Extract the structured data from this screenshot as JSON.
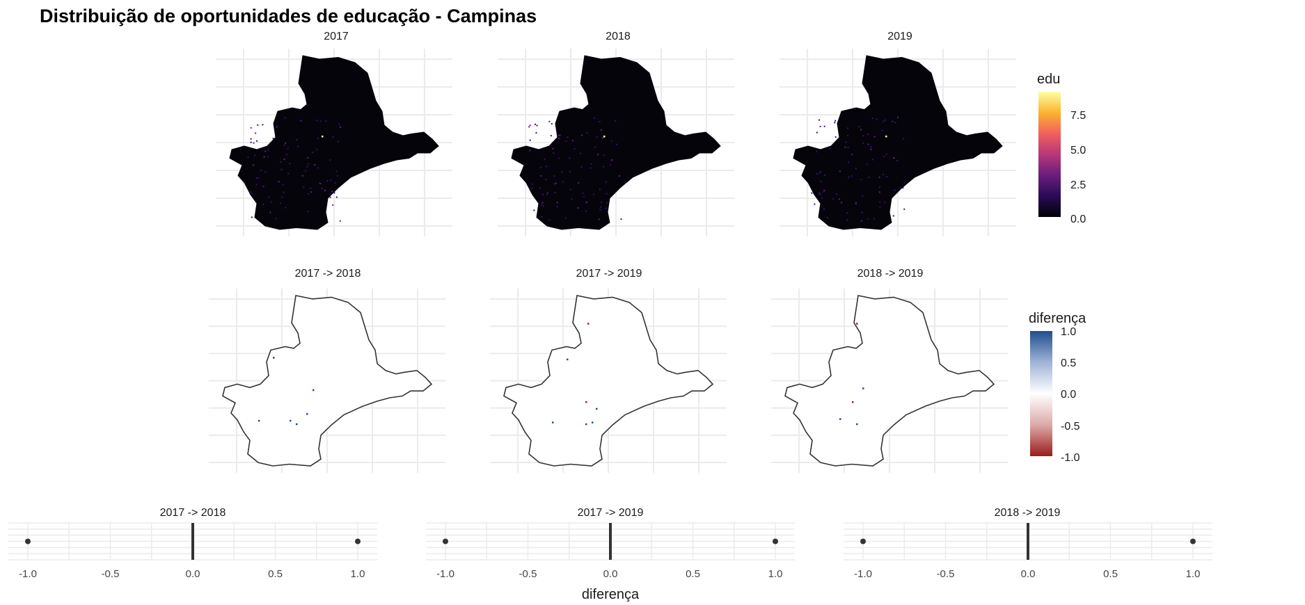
{
  "title": "Distribuição de oportunidades de educação - Campinas",
  "colors": {
    "grid": "#ebebeb",
    "map_fill": "#05040b",
    "map_outline": "#333333",
    "diff_pos": "#1f4e8c",
    "diff_neg": "#9b1c1c",
    "point": "#333333",
    "edu_gradient": [
      "#000004",
      "#2a0b57",
      "#6a1e7e",
      "#b73779",
      "#f1605d",
      "#fbb32f",
      "#fcffa4"
    ],
    "diff_gradient": [
      "#1f4e8c",
      "#9fb3d6",
      "#ffffff",
      "#dcaaa8",
      "#9b1c1c"
    ]
  },
  "chart_data": [
    {
      "type": "heatmap",
      "variable": "edu",
      "panels": [
        "2017",
        "2018",
        "2019"
      ],
      "legend": {
        "title": "edu",
        "position": "right",
        "ticks": [
          "7.5",
          "5.0",
          "2.5",
          "0.0"
        ],
        "range": [
          0,
          9.5
        ]
      },
      "grid": true
    },
    {
      "type": "heatmap",
      "variable": "diferença",
      "panels": [
        "2017 -> 2018",
        "2017 -> 2019",
        "2018 -> 2019"
      ],
      "legend": {
        "title": "diferença",
        "position": "right",
        "ticks": [
          "1.0",
          "0.5",
          "0.0",
          "-0.5",
          "-1.0"
        ],
        "range": [
          -1,
          1
        ]
      },
      "grid": true
    },
    {
      "type": "scatter",
      "xlabel": "diferença",
      "xlim": [
        -1.0,
        1.0
      ],
      "xticks": [
        "-1.0",
        "-0.5",
        "0.0",
        "0.5",
        "1.0"
      ],
      "grid": true,
      "panels": [
        {
          "title": "2017 -> 2018",
          "x": [
            -1.0,
            0.0,
            1.0
          ]
        },
        {
          "title": "2017 -> 2019",
          "x": [
            -1.0,
            0.0,
            1.0
          ]
        },
        {
          "title": "2018 -> 2019",
          "x": [
            -1.0,
            0.0,
            1.0
          ]
        }
      ]
    }
  ]
}
